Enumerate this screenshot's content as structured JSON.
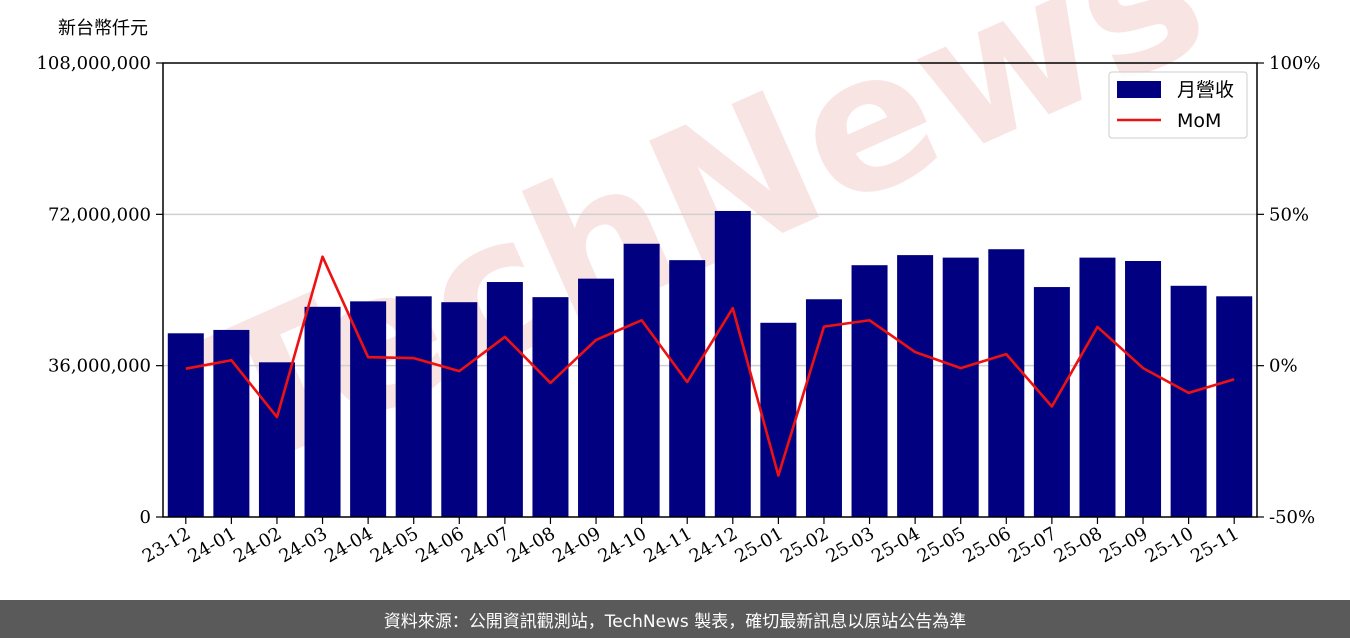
{
  "unit_label": "新台幣仟元",
  "footer_text": "資料來源：公開資訊觀測站，TechNews 製表，確切最新訊息以原站公告為準",
  "watermark_text": "TechNews",
  "colors": {
    "bar": "#000080",
    "line": "#ee1111",
    "grid": "#d0d0d0",
    "watermark": "#f2c4c4"
  },
  "chart_data": {
    "type": "bar",
    "categories": [
      "23-12",
      "24-01",
      "24-02",
      "24-03",
      "24-04",
      "24-05",
      "24-06",
      "24-07",
      "24-08",
      "24-09",
      "24-10",
      "24-11",
      "24-12",
      "25-01",
      "25-02",
      "25-03",
      "25-04",
      "25-05",
      "25-06",
      "25-07",
      "25-08",
      "25-09",
      "25-10",
      "25-11"
    ],
    "series": [
      {
        "name": "月營收",
        "type": "bar",
        "axis": "left",
        "values": [
          43700000,
          44500000,
          36800000,
          50000000,
          51300000,
          52500000,
          51100000,
          55900000,
          52300000,
          56700000,
          65000000,
          61100000,
          72800000,
          46200000,
          51800000,
          59900000,
          62300000,
          61700000,
          63700000,
          54700000,
          61700000,
          60900000,
          55000000,
          52500000
        ]
      },
      {
        "name": "MoM",
        "type": "line",
        "axis": "right",
        "values": [
          -1.0,
          1.8,
          -17.0,
          36.0,
          2.8,
          2.5,
          -1.8,
          9.5,
          -5.7,
          8.5,
          15.0,
          -5.4,
          19.0,
          -36.3,
          12.9,
          15.0,
          4.5,
          -0.8,
          3.8,
          -13.5,
          12.8,
          -0.8,
          -9.0,
          -4.5
        ]
      }
    ],
    "y_left": {
      "ylim": [
        0,
        108000000
      ],
      "ticks": [
        0,
        36000000,
        72000000,
        108000000
      ],
      "tick_labels": [
        "0",
        "36,000,000",
        "72,000,000",
        "108,000,000"
      ]
    },
    "y_right": {
      "ylim": [
        -50,
        100
      ],
      "ticks": [
        -50,
        0,
        50,
        100
      ],
      "tick_labels": [
        "-50%",
        "0%",
        "50%",
        "100%"
      ]
    },
    "grid": "horizontal",
    "legend": "top-right",
    "title": "",
    "xlabel": ""
  }
}
